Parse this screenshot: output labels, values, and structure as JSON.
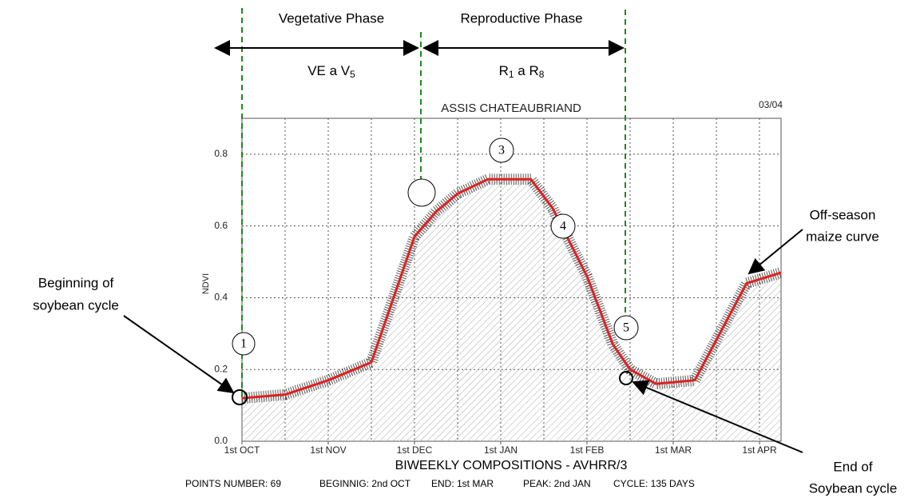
{
  "chart_data": {
    "type": "line",
    "title": "ASSIS CHATEAUBRIAND",
    "season": "03/04",
    "y_label": "NDVI",
    "x_label": "BIWEEKLY COMPOSITIONS - AVHRR/3",
    "x": [
      0,
      1,
      2,
      3,
      4,
      4.5,
      5,
      5.7,
      6.7,
      7.2,
      8,
      8.6,
      9,
      9.6,
      10.5,
      11.7,
      12.5
    ],
    "series": [
      {
        "name": "NDVI",
        "color": "#e02020",
        "values": [
          0.12,
          0.13,
          0.17,
          0.22,
          0.57,
          0.64,
          0.69,
          0.73,
          0.73,
          0.65,
          0.46,
          0.27,
          0.2,
          0.16,
          0.17,
          0.44,
          0.47
        ]
      }
    ],
    "xlim": [
      0,
      12.5
    ],
    "ylim": [
      0,
      0.9
    ],
    "xticks": [
      {
        "value": 0,
        "label": "1st OCT"
      },
      {
        "value": 2,
        "label": "1st NOV"
      },
      {
        "value": 4,
        "label": "1st DEC"
      },
      {
        "value": 6,
        "label": "1st JAN"
      },
      {
        "value": 8,
        "label": "1st FEB"
      },
      {
        "value": 10,
        "label": "1st MAR"
      },
      {
        "value": 12,
        "label": "1st APR"
      }
    ],
    "xgrid": [
      1,
      2,
      3,
      4,
      5,
      6,
      7,
      8,
      9,
      10,
      11,
      12
    ],
    "yticks": [
      {
        "value": 0,
        "label": "0.0"
      },
      {
        "value": 0.2,
        "label": "0.2"
      },
      {
        "value": 0.4,
        "label": "0.4"
      },
      {
        "value": 0.6,
        "label": "0.6"
      },
      {
        "value": 0.8,
        "label": "0.8"
      }
    ],
    "grid": true,
    "footer": [
      "POINTS NUMBER: 69",
      "BEGINNIG: 2nd OCT",
      "END: 1st MAR",
      "PEAK: 2nd JAN",
      "CYCLE: 135 DAYS"
    ],
    "annotations": {
      "vegetative_phase": "Vegetative Phase",
      "reproductive_phase": "Reproductive Phase",
      "vegetative_stages": [
        "VE a V",
        "5"
      ],
      "reproductive_stages": [
        "R",
        "1",
        " a R",
        "8"
      ],
      "stage_1": "1",
      "stage_3": "3",
      "stage_4": "4",
      "stage_5": "5",
      "off_season": [
        "Off-season",
        "maize curve"
      ],
      "beginning": [
        "Beginning of",
        "soybean cycle"
      ],
      "end": [
        "End of",
        "Soybean cycle"
      ]
    }
  }
}
